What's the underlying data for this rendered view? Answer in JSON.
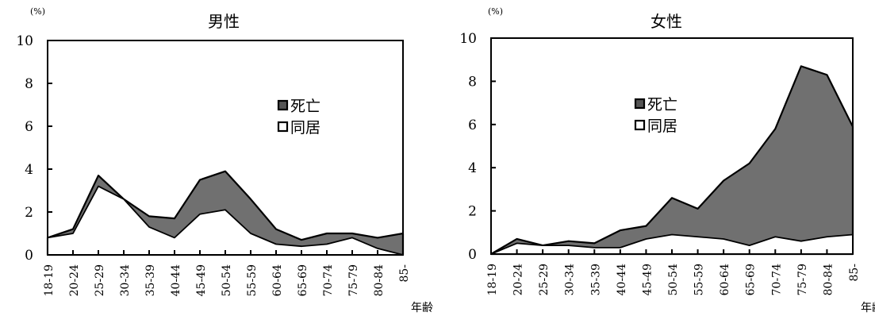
{
  "chart_data": [
    {
      "type": "area",
      "title": "男性",
      "ylabel": "(%)",
      "xlabel": "年齢",
      "ylim": [
        0,
        10
      ],
      "yticks": [
        0,
        2,
        4,
        6,
        8,
        10
      ],
      "grid": false,
      "legend_position": "middle-right",
      "categories": [
        "18-19",
        "20-24",
        "25-29",
        "30-34",
        "35-39",
        "40-44",
        "45-49",
        "50-54",
        "55-59",
        "60-64",
        "65-69",
        "70-74",
        "75-79",
        "80-84",
        "85-"
      ],
      "series": [
        {
          "name": "死亡",
          "color": "#707070",
          "values": [
            0.8,
            1.2,
            3.7,
            2.6,
            1.8,
            1.7,
            3.5,
            3.9,
            2.6,
            1.2,
            0.7,
            1.0,
            1.0,
            0.8,
            1.0
          ]
        },
        {
          "name": "同居",
          "color": "#ffffff",
          "values": [
            0.8,
            1.0,
            3.2,
            2.6,
            1.3,
            0.8,
            1.9,
            2.1,
            1.0,
            0.5,
            0.4,
            0.5,
            0.8,
            0.3,
            0.0
          ]
        }
      ]
    },
    {
      "type": "area",
      "title": "女性",
      "ylabel": "(%)",
      "xlabel": "年齢",
      "ylim": [
        0,
        10
      ],
      "yticks": [
        0,
        2,
        4,
        6,
        8,
        10
      ],
      "grid": false,
      "legend_position": "middle-left",
      "categories": [
        "18-19",
        "20-24",
        "25-29",
        "30-34",
        "35-39",
        "40-44",
        "45-49",
        "50-54",
        "55-59",
        "60-64",
        "65-69",
        "70-74",
        "75-79",
        "80-84",
        "85-"
      ],
      "series": [
        {
          "name": "死亡",
          "color": "#707070",
          "values": [
            0.0,
            0.7,
            0.4,
            0.6,
            0.5,
            1.1,
            1.3,
            2.6,
            2.1,
            3.4,
            4.2,
            5.8,
            8.7,
            8.3,
            5.9
          ]
        },
        {
          "name": "同居",
          "color": "#ffffff",
          "values": [
            0.0,
            0.5,
            0.4,
            0.4,
            0.3,
            0.3,
            0.7,
            0.9,
            0.8,
            0.7,
            0.4,
            0.8,
            0.6,
            0.8,
            0.9
          ]
        }
      ]
    }
  ]
}
